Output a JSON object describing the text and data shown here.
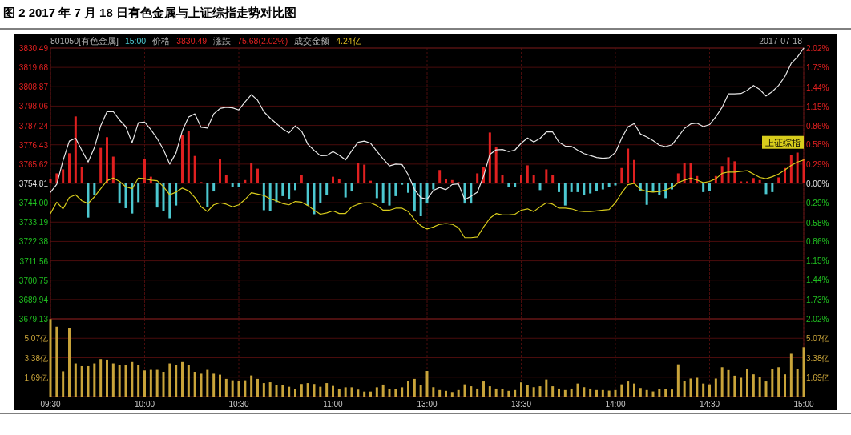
{
  "chart_data": [
    {
      "type": "line",
      "title": "图 2 2017 年 7 月 18 日有色金属与上证综指走势对比图",
      "annotations": [
        "801050[有色金属]",
        "15:00",
        "价格",
        "3830.49",
        "涨跌",
        "75.68(2.02%)",
        "成交金额",
        "4.24亿",
        "2017-07-18"
      ],
      "categories": [
        null,
        null,
        null,
        null,
        null,
        null,
        null,
        null,
        null,
        null,
        null,
        null,
        null,
        null,
        null,
        null,
        null,
        null,
        null,
        null,
        null,
        null,
        null,
        null,
        null,
        null,
        null,
        null,
        null,
        null,
        null,
        null,
        null,
        null,
        null,
        null,
        null,
        null,
        null,
        null,
        null,
        null,
        null,
        null,
        null,
        null,
        null,
        null,
        null,
        null,
        null,
        null,
        null,
        null,
        null,
        null,
        null,
        null,
        null,
        null,
        null,
        null,
        null,
        null,
        null,
        null,
        null,
        null,
        null,
        null,
        null,
        null,
        null,
        null,
        null,
        null,
        null,
        null,
        null,
        null,
        null,
        null,
        null,
        null,
        null,
        null,
        null,
        null,
        null,
        null,
        null,
        null,
        null,
        null,
        null,
        null,
        null,
        null,
        null,
        null,
        null,
        null,
        null,
        null,
        null,
        null,
        null,
        null,
        null,
        null,
        null,
        null,
        null,
        null,
        null,
        null,
        null,
        null,
        null,
        null,
        null
      ],
      "ylim": [
        3679.13,
        3830.49
      ],
      "yticks": [
        3830.49,
        3819.68,
        3808.87,
        3798.06,
        3787.24,
        3776.43,
        3765.62,
        3754.81,
        {
          "value": 3744.0,
          "label": "3744.00"
        },
        3733.19,
        3722.38,
        3711.56,
        3700.75,
        3689.94,
        3679.13
      ],
      "y2lim": [
        -2.02,
        2.02
      ],
      "y2ticks": [
        {
          "value": 2.02,
          "label": "2.02%"
        },
        {
          "value": 1.73,
          "label": "1.73%"
        },
        {
          "value": 1.44,
          "label": "1.44%"
        },
        {
          "value": 1.15,
          "label": "1.15%"
        },
        {
          "value": 0.86,
          "label": "0.86%"
        },
        {
          "value": 0.58,
          "label": "0.58%"
        },
        {
          "value": 0.29,
          "label": "0.29%"
        },
        {
          "value": 0,
          "label": "0.00%"
        },
        {
          "value": -0.29,
          "label": "0.29%"
        },
        {
          "value": -0.58,
          "label": "0.58%"
        },
        {
          "value": -0.86,
          "label": "0.86%"
        },
        {
          "value": -1.15,
          "label": "1.15%"
        },
        {
          "value": -1.44,
          "label": "1.44%"
        },
        {
          "value": -1.73,
          "label": "1.73%"
        },
        {
          "value": -2.02,
          "label": "2.02%"
        }
      ],
      "tick_labels": "y",
      "grid": true,
      "series": [
        {
          "type": "bar",
          "axis": "y2",
          "color": "#e02020",
          "values": [
            0.06,
            0.15,
            0.21,
            0.45,
            1.0,
            0.24,
            null,
            null,
            0.53,
            0.69,
            0.4,
            null,
            null,
            null,
            null,
            0.36,
            0.1,
            null,
            null,
            null,
            null,
            0.72,
            0.78,
            0.41,
            0.02,
            null,
            null,
            0.37,
            0.13,
            null,
            null,
            0.05,
            0.3,
            0.22,
            null,
            null,
            null,
            null,
            null,
            null,
            0.13,
            null,
            null,
            null,
            null,
            0.1,
            0.06,
            null,
            null,
            0.3,
            0.28,
            0.04,
            null,
            null,
            null,
            null,
            null,
            null,
            null,
            null,
            null,
            null,
            0.2,
            0.07,
            0.05,
            0.02,
            null,
            null,
            0.15,
            0.25,
            0.76,
            0.55,
            0.13,
            null,
            null,
            0.12,
            0.27,
            0.13,
            null,
            0.21,
            0.12,
            null,
            null,
            null,
            null,
            null,
            null,
            null,
            null,
            null,
            null,
            0.23,
            0.52,
            0.35,
            null,
            null,
            null,
            null,
            null,
            null,
            0.15,
            0.31,
            0.3,
            0.11,
            null,
            null,
            0.11,
            0.26,
            0.39,
            0.33,
            0.03,
            0.03,
            0.08,
            0.05,
            null,
            null,
            0.09,
            0.23,
            0.42,
            0.46,
            0.37
          ]
        },
        {
          "type": "bar",
          "axis": "y2",
          "color": "#4cc8d0",
          "values": [
            null,
            null,
            null,
            null,
            null,
            null,
            -0.51,
            -0.17,
            null,
            null,
            null,
            -0.3,
            -0.37,
            -0.45,
            -0.28,
            null,
            null,
            -0.36,
            -0.41,
            -0.52,
            -0.33,
            null,
            null,
            null,
            null,
            -0.35,
            -0.12,
            null,
            null,
            -0.05,
            -0.06,
            null,
            null,
            null,
            -0.4,
            -0.41,
            -0.28,
            -0.19,
            -0.24,
            -0.1,
            null,
            -0.33,
            -0.46,
            -0.29,
            -0.17,
            null,
            null,
            -0.21,
            -0.12,
            null,
            null,
            null,
            -0.22,
            -0.29,
            -0.33,
            -0.19,
            -0.02,
            -0.14,
            -0.42,
            -0.49,
            -0.3,
            -0.09,
            null,
            null,
            null,
            null,
            -0.3,
            -0.3,
            null,
            null,
            null,
            null,
            null,
            -0.06,
            -0.06,
            null,
            null,
            null,
            -0.1,
            null,
            null,
            -0.13,
            -0.33,
            -0.13,
            -0.13,
            -0.17,
            -0.15,
            -0.12,
            -0.09,
            -0.05,
            -0.03,
            null,
            null,
            null,
            -0.12,
            -0.32,
            -0.13,
            -0.17,
            -0.22,
            -0.09,
            null,
            null,
            null,
            null,
            -0.13,
            -0.11,
            null,
            null,
            null,
            null,
            null,
            null,
            null,
            null,
            -0.16,
            -0.13,
            null,
            null,
            null,
            null,
            null
          ]
        },
        {
          "color": "#e8e8e8",
          "values": [
            3749.8,
            3754.3,
            3767.6,
            3778.5,
            3780.1,
            3773.3,
            3766.8,
            3774.8,
            3787.1,
            3794.9,
            3795.0,
            3790.3,
            3786.5,
            3777.6,
            3788.8,
            3789.1,
            3784.9,
            3779.9,
            3773.7,
            3765.6,
            3771.9,
            3784.2,
            3792.0,
            3793.7,
            3786.2,
            3785.8,
            3793.7,
            3796.7,
            3797.4,
            3797.1,
            3795.9,
            3800.4,
            3804.5,
            3801.3,
            3794.9,
            3791.3,
            3788.3,
            3785.3,
            3783.1,
            3787.0,
            3784.1,
            3776.7,
            3773.3,
            3770.3,
            3770.4,
            3772.6,
            3770.6,
            3768.0,
            3773.1,
            3777.8,
            3778.5,
            3777.3,
            3772.8,
            3768.5,
            3764.6,
            3765.6,
            3765.4,
            3759.6,
            3751.4,
            3746.8,
            3746.0,
            3750.9,
            3752.5,
            3751.3,
            3754.2,
            3754.5,
            3745.7,
            3747.6,
            3749.9,
            3758.9,
            3771.0,
            3773.6,
            3773.8,
            3772.6,
            3773.5,
            3777.3,
            3780.2,
            3778.0,
            3780.0,
            3783.6,
            3783.6,
            3777.9,
            3775.7,
            3775.5,
            3773.4,
            3771.5,
            3770.4,
            3769.3,
            3768.9,
            3769.2,
            3772.1,
            3780.1,
            3786.5,
            3788.3,
            3782.4,
            3780.8,
            3778.8,
            3776.2,
            3775.4,
            3776.4,
            3780.9,
            3785.6,
            3788.1,
            3788.5,
            3786.6,
            3787.7,
            3792.1,
            3797.4,
            3804.9,
            3804.9,
            3805.1,
            3806.9,
            3809.6,
            3807.3,
            3803.7,
            3806.2,
            3809.6,
            3814.6,
            3821.9,
            3825.5,
            3830.4
          ]
        },
        {
          "axis": "y2",
          "name": "上证综指",
          "color": "#d8cc1c",
          "values": [
            -0.45,
            -0.28,
            -0.38,
            -0.21,
            -0.17,
            -0.26,
            -0.3,
            -0.2,
            -0.08,
            0.04,
            0.08,
            0.03,
            -0.05,
            -0.08,
            0.08,
            0.07,
            0.05,
            0.04,
            -0.05,
            -0.17,
            -0.13,
            -0.07,
            -0.11,
            -0.21,
            -0.35,
            -0.42,
            -0.32,
            -0.29,
            -0.31,
            -0.35,
            -0.32,
            -0.24,
            -0.14,
            -0.16,
            -0.18,
            -0.23,
            -0.26,
            -0.3,
            -0.32,
            -0.27,
            -0.28,
            -0.33,
            -0.4,
            -0.46,
            -0.44,
            -0.41,
            -0.45,
            -0.45,
            -0.35,
            -0.31,
            -0.29,
            -0.29,
            -0.33,
            -0.4,
            -0.4,
            -0.37,
            -0.37,
            -0.42,
            -0.54,
            -0.63,
            -0.68,
            -0.65,
            -0.61,
            -0.6,
            -0.61,
            -0.66,
            -0.81,
            -0.81,
            -0.8,
            -0.65,
            -0.52,
            -0.45,
            -0.47,
            -0.47,
            -0.46,
            -0.4,
            -0.38,
            -0.42,
            -0.35,
            -0.29,
            -0.31,
            -0.37,
            -0.37,
            -0.38,
            -0.41,
            -0.42,
            -0.42,
            -0.41,
            -0.4,
            -0.39,
            -0.29,
            -0.14,
            -0.02,
            0.0,
            -0.09,
            -0.12,
            -0.13,
            -0.12,
            -0.1,
            -0.06,
            0.01,
            0.05,
            0.08,
            0.05,
            0.01,
            0.03,
            0.07,
            0.15,
            0.17,
            0.17,
            0.18,
            0.19,
            0.14,
            0.09,
            0.07,
            0.1,
            0.14,
            0.2,
            0.27,
            0.32,
            0.35
          ]
        }
      ]
    },
    {
      "type": "bar",
      "color": "#c9a43a",
      "categories": [
        "09:30",
        null,
        null,
        null,
        null,
        null,
        null,
        null,
        null,
        null,
        null,
        null,
        null,
        null,
        null,
        "10:00",
        null,
        null,
        null,
        null,
        null,
        null,
        null,
        null,
        null,
        null,
        null,
        null,
        null,
        null,
        "10:30",
        null,
        null,
        null,
        null,
        null,
        null,
        null,
        null,
        null,
        null,
        null,
        null,
        null,
        null,
        "11:00",
        null,
        null,
        null,
        null,
        null,
        null,
        null,
        null,
        null,
        null,
        null,
        null,
        null,
        null,
        "13:00",
        null,
        null,
        null,
        null,
        null,
        null,
        null,
        null,
        null,
        null,
        null,
        null,
        null,
        null,
        "13:30",
        null,
        null,
        null,
        null,
        null,
        null,
        null,
        null,
        null,
        null,
        null,
        null,
        null,
        null,
        "14:00",
        null,
        null,
        null,
        null,
        null,
        null,
        null,
        null,
        null,
        null,
        null,
        null,
        null,
        null,
        "14:30",
        null,
        null,
        null,
        null,
        null,
        null,
        null,
        null,
        null,
        null,
        null,
        null,
        null,
        null,
        "15:00"
      ],
      "ylim": [
        0,
        6.76
      ],
      "yticks": [
        {
          "value": 1.69,
          "label": "1.69亿"
        },
        {
          "value": 3.38,
          "label": "3.38亿"
        },
        {
          "value": 5.07,
          "label": "5.07亿"
        }
      ],
      "y2lim": [
        0,
        6.76
      ],
      "y2ticks": [
        {
          "value": 1.69,
          "label": "1.69亿"
        },
        {
          "value": 3.38,
          "label": "3.38亿"
        },
        {
          "value": 5.07,
          "label": "5.07亿"
        }
      ],
      "grid": true,
      "values": [
        6.74,
        6.08,
        2.2,
        5.96,
        2.89,
        2.65,
        2.65,
        2.89,
        3.26,
        3.21,
        2.89,
        2.77,
        2.77,
        3.01,
        2.77,
        2.28,
        2.33,
        2.33,
        2.16,
        2.89,
        2.77,
        3.01,
        2.77,
        2.16,
        1.99,
        2.33,
        1.99,
        1.91,
        1.54,
        1.42,
        1.35,
        1.42,
        1.84,
        1.54,
        1.18,
        1.25,
        1.0,
        1.0,
        0.86,
        0.69,
        1.1,
        1.18,
        1.1,
        0.86,
        1.18,
        0.93,
        0.69,
        0.81,
        0.81,
        0.61,
        0.44,
        0.44,
        0.81,
        1.05,
        0.69,
        0.69,
        0.81,
        1.35,
        1.54,
        1.0,
        2.23,
        0.82,
        0.57,
        0.5,
        0.4,
        0.57,
        1.07,
        0.9,
        0.7,
        1.32,
        0.9,
        0.7,
        0.65,
        0.5,
        0.57,
        1.24,
        1.0,
        0.82,
        0.9,
        1.49,
        0.9,
        0.7,
        0.57,
        0.7,
        1.14,
        0.82,
        0.7,
        0.57,
        0.57,
        0.52,
        0.57,
        1.07,
        1.32,
        1.14,
        0.75,
        0.57,
        0.45,
        0.65,
        0.65,
        0.62,
        2.81,
        1.39,
        1.57,
        1.64,
        1.14,
        1.07,
        1.57,
        2.56,
        2.31,
        1.82,
        1.64,
        2.44,
        1.94,
        1.69,
        1.32,
        2.44,
        2.56,
        1.94,
        3.73,
        2.44,
        4.3
      ]
    }
  ]
}
